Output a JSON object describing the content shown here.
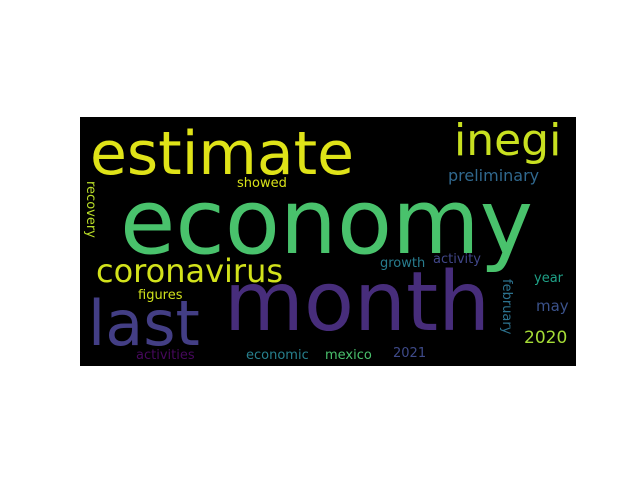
{
  "wordcloud": {
    "background": "#000000",
    "words": [
      {
        "text": "economy",
        "color": "#49c26c"
      },
      {
        "text": "month",
        "color": "#472d7b"
      },
      {
        "text": "estimate",
        "color": "#dfe318"
      },
      {
        "text": "last",
        "color": "#433e85"
      },
      {
        "text": "inegi",
        "color": "#c8e020"
      },
      {
        "text": "coronavirus",
        "color": "#d2e21b"
      },
      {
        "text": "preliminary",
        "color": "#30688e"
      },
      {
        "text": "showed",
        "color": "#d8e219"
      },
      {
        "text": "recovery",
        "color": "#bade28"
      },
      {
        "text": "growth",
        "color": "#287c8e"
      },
      {
        "text": "activity",
        "color": "#404688"
      },
      {
        "text": "year",
        "color": "#1fa187"
      },
      {
        "text": "may",
        "color": "#3b528b"
      },
      {
        "text": "2020",
        "color": "#a5db36"
      },
      {
        "text": "february",
        "color": "#2c728e"
      },
      {
        "text": "figures",
        "color": "#d0e11c"
      },
      {
        "text": "activities",
        "color": "#46085c"
      },
      {
        "text": "economic",
        "color": "#27808e"
      },
      {
        "text": "mexico",
        "color": "#4ac16d"
      },
      {
        "text": "2021",
        "color": "#3e4a89"
      }
    ]
  }
}
